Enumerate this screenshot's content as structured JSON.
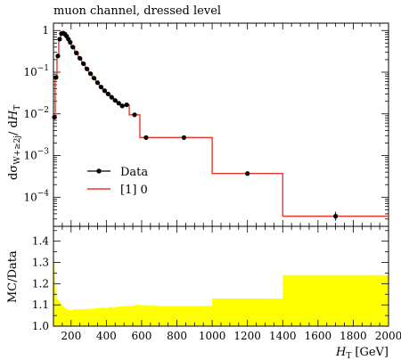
{
  "chart_data": [
    {
      "type": "line",
      "title": "muon channel, dressed level",
      "ylabel": "dσ_{W+≥2j}/dH_T",
      "ylabel_parts": {
        "main": "dσ",
        "sub": "W+≥2j",
        "mid": "/ d",
        "var": "H",
        "varsub": "T"
      },
      "xlim": [
        100,
        2000
      ],
      "ylim": [
        2e-05,
        1.5
      ],
      "yscale": "log",
      "ytick_labels": [
        {
          "value": 1,
          "mant": "1",
          "exp": ""
        },
        {
          "value": 0.1,
          "mant": "10",
          "exp": "−1"
        },
        {
          "value": 0.01,
          "mant": "10",
          "exp": "−2"
        },
        {
          "value": 0.001,
          "mant": "10",
          "exp": "−3"
        },
        {
          "value": 0.0001,
          "mant": "10",
          "exp": "−4"
        }
      ],
      "legend": {
        "position": "lower-left",
        "entries": [
          "Data",
          "[1] 0"
        ]
      },
      "series": [
        {
          "name": "Data",
          "style": "points",
          "color": "#000000",
          "x": [
            105,
            115,
            125,
            135,
            145,
            155,
            165,
            175,
            185,
            195,
            210,
            230,
            250,
            270,
            290,
            310,
            330,
            350,
            370,
            390,
            410,
            430,
            450,
            470,
            490,
            515,
            560,
            625,
            840,
            1200,
            1700
          ],
          "y": [
            0.0083,
            0.075,
            0.245,
            0.62,
            0.84,
            0.87,
            0.82,
            0.73,
            0.62,
            0.52,
            0.4,
            0.29,
            0.215,
            0.16,
            0.12,
            0.092,
            0.072,
            0.056,
            0.044,
            0.036,
            0.03,
            0.025,
            0.021,
            0.018,
            0.0155,
            0.0165,
            0.0095,
            0.0027,
            0.0027,
            0.00037,
            3.5e-05
          ]
        },
        {
          "name": "[1] 0",
          "style": "step",
          "color": "#e8382a",
          "edges": [
            100,
            110,
            120,
            130,
            140,
            150,
            160,
            170,
            180,
            190,
            200,
            220,
            240,
            260,
            280,
            300,
            320,
            340,
            360,
            380,
            400,
            420,
            440,
            460,
            480,
            500,
            530,
            590,
            680,
            1000,
            1400,
            2000
          ],
          "y": [
            0.0083,
            0.075,
            0.245,
            0.62,
            0.84,
            0.87,
            0.82,
            0.73,
            0.62,
            0.52,
            0.4,
            0.29,
            0.215,
            0.16,
            0.12,
            0.092,
            0.072,
            0.056,
            0.044,
            0.036,
            0.03,
            0.025,
            0.021,
            0.018,
            0.0155,
            0.0165,
            0.0095,
            0.0027,
            0.0027,
            0.00037,
            3.5e-05
          ]
        }
      ]
    },
    {
      "type": "area",
      "ylabel": "MC/Data",
      "xlabel": "H_T [GeV]",
      "xlabel_parts": {
        "var": "H",
        "varsub": "T",
        "unit": "[GeV]"
      },
      "xlim": [
        100,
        2000
      ],
      "ylim": [
        1.0,
        1.47
      ],
      "xticks": [
        200,
        400,
        600,
        800,
        1000,
        1200,
        1400,
        1600,
        1800,
        2000
      ],
      "yticks": [
        1.0,
        1.1,
        1.2,
        1.3,
        1.4
      ],
      "ytick_labels": [
        "1.0",
        "1.1",
        "1.2",
        "1.3",
        "1.4"
      ],
      "band_color": "#ffff00",
      "band": {
        "x": [
          100,
          105,
          110,
          115,
          120,
          130,
          140,
          150,
          160,
          170,
          180,
          190,
          200,
          220,
          240,
          260,
          280,
          300,
          320,
          340,
          360,
          380,
          400,
          420,
          440,
          460,
          480,
          500,
          530,
          560,
          590,
          680,
          1000,
          1400,
          2000
        ],
        "upper": [
          1.33,
          1.28,
          1.22,
          1.16,
          1.13,
          1.12,
          1.11,
          1.1,
          1.09,
          1.085,
          1.08,
          1.075,
          1.075,
          1.08,
          1.078,
          1.08,
          1.08,
          1.082,
          1.08,
          1.085,
          1.085,
          1.088,
          1.085,
          1.09,
          1.088,
          1.09,
          1.092,
          1.095,
          1.095,
          1.1,
          1.098,
          1.095,
          1.13,
          1.24,
          1.24
        ]
      }
    }
  ]
}
